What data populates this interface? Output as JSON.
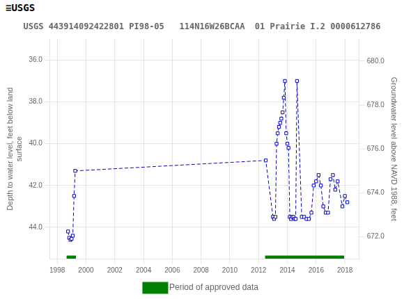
{
  "chart_data": {
    "type": "line",
    "title": "USGS 443914092422801 PI98-05   114N16W26BCAA  01 Prairie I.2 0000612786",
    "annotations": [
      "≡USGS"
    ],
    "y_label": "Depth to water level, feet below land\nsurface",
    "y2_label": "Groundwater level above NAVD 1988, feet",
    "x": [
      1998.75,
      1998.83,
      1998.92,
      1999.0,
      1999.08,
      1999.17,
      1999.25,
      2012.5,
      2013.0,
      2013.08,
      2013.17,
      2013.25,
      2013.33,
      2013.42,
      2013.5,
      2013.58,
      2013.67,
      2013.75,
      2013.83,
      2013.92,
      2014.0,
      2014.08,
      2014.17,
      2014.25,
      2014.33,
      2014.42,
      2014.5,
      2014.58,
      2014.67,
      2015.0,
      2015.17,
      2015.33,
      2015.5,
      2015.67,
      2015.83,
      2016.0,
      2016.17,
      2016.33,
      2016.5,
      2016.67,
      2016.83,
      2017.0,
      2017.17,
      2017.33,
      2017.5,
      2017.83,
      2018.0,
      2018.17
    ],
    "series": [
      {
        "color": "#0000cc",
        "line_style": "dashed",
        "marker": "square",
        "values": [
          44.2,
          44.5,
          44.6,
          44.55,
          44.4,
          42.5,
          41.3,
          40.8,
          43.5,
          43.6,
          43.5,
          40.0,
          39.5,
          39.2,
          39.0,
          38.8,
          38.5,
          37.8,
          37.0,
          39.5,
          40.0,
          40.2,
          43.5,
          43.6,
          43.5,
          43.5,
          43.6,
          43.6,
          37.0,
          43.5,
          43.5,
          43.6,
          43.6,
          43.3,
          42.0,
          41.8,
          41.5,
          42.0,
          43.0,
          43.3,
          43.3,
          41.7,
          41.5,
          42.2,
          41.8,
          43.0,
          42.5,
          42.8
        ]
      }
    ],
    "approved_periods": {
      "name": "Period of approved data",
      "color": "#008000",
      "periods": [
        [
          1998.65,
          1999.3
        ],
        [
          2012.45,
          2017.95
        ]
      ]
    },
    "xlim": [
      1997.5,
      2019.0
    ],
    "xticks": [
      1998,
      2000,
      2002,
      2004,
      2006,
      2008,
      2010,
      2012,
      2014,
      2016,
      2018
    ],
    "ylim": [
      45.5,
      35.0
    ],
    "yticks": [
      {
        "value": 36.0,
        "label": "36.0"
      },
      {
        "value": 38.0,
        "label": "38.0"
      },
      {
        "value": 40.0,
        "label": "40.0"
      },
      {
        "value": 42.0,
        "label": "42.0"
      },
      {
        "value": 44.0,
        "label": "44.0"
      }
    ],
    "y2lim": [
      671.0,
      681.0
    ],
    "y2ticks": [
      {
        "value": 680.0,
        "label": "680.0"
      },
      {
        "value": 678.0,
        "label": "678.0"
      },
      {
        "value": 676.0,
        "label": "676.0"
      },
      {
        "value": 674.0,
        "label": "674.0"
      },
      {
        "value": 672.0,
        "label": "672.0"
      }
    ],
    "grid": true,
    "legend": "bottom"
  }
}
